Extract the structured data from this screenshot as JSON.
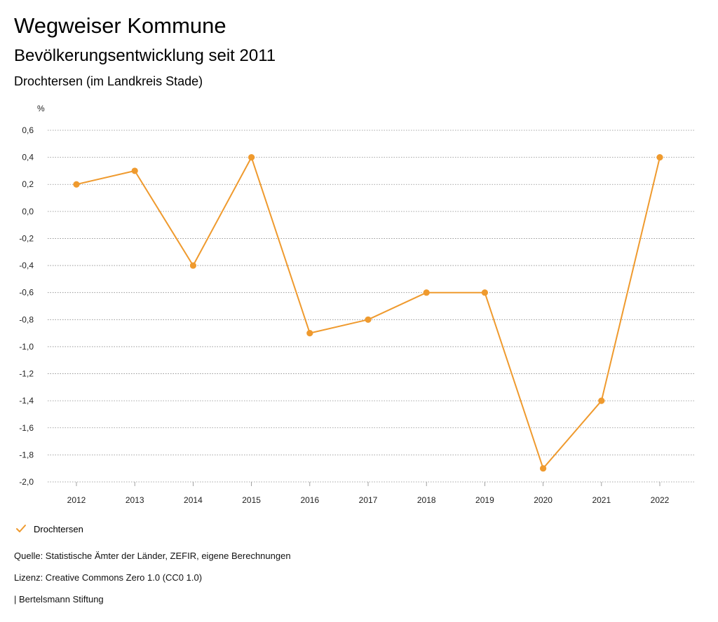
{
  "header": {
    "title": "Wegweiser Kommune",
    "subtitle": "Bevölkerungsentwicklung seit 2011",
    "region": "Drochtersen (im Landkreis Stade)"
  },
  "chart_data": {
    "type": "line",
    "x": [
      "2012",
      "2013",
      "2014",
      "2015",
      "2016",
      "2017",
      "2018",
      "2019",
      "2020",
      "2021",
      "2022"
    ],
    "series": [
      {
        "name": "Drochtersen",
        "color": "#ef9a2e",
        "values": [
          0.2,
          0.3,
          -0.4,
          0.4,
          -0.9,
          -0.8,
          -0.6,
          -0.6,
          -1.9,
          -1.4,
          0.4
        ]
      }
    ],
    "ylabel": "%",
    "ylim": [
      -2.0,
      0.6
    ],
    "yticks": [
      "0,6",
      "0,4",
      "0,2",
      "0,0",
      "-0,2",
      "-0,4",
      "-0,6",
      "-0,8",
      "-1,0",
      "-1,2",
      "-1,4",
      "-1,6",
      "-1,8",
      "-2,0"
    ],
    "grid": true,
    "legend_position": "bottom-left"
  },
  "legend": {
    "icon": "check-icon",
    "label": "Drochtersen"
  },
  "footer": {
    "source": "Quelle: Statistische Ämter der Länder, ZEFIR, eigene Berechnungen",
    "license": "Lizenz: Creative Commons Zero 1.0 (CC0 1.0)",
    "publisher": "| Bertelsmann Stiftung"
  }
}
